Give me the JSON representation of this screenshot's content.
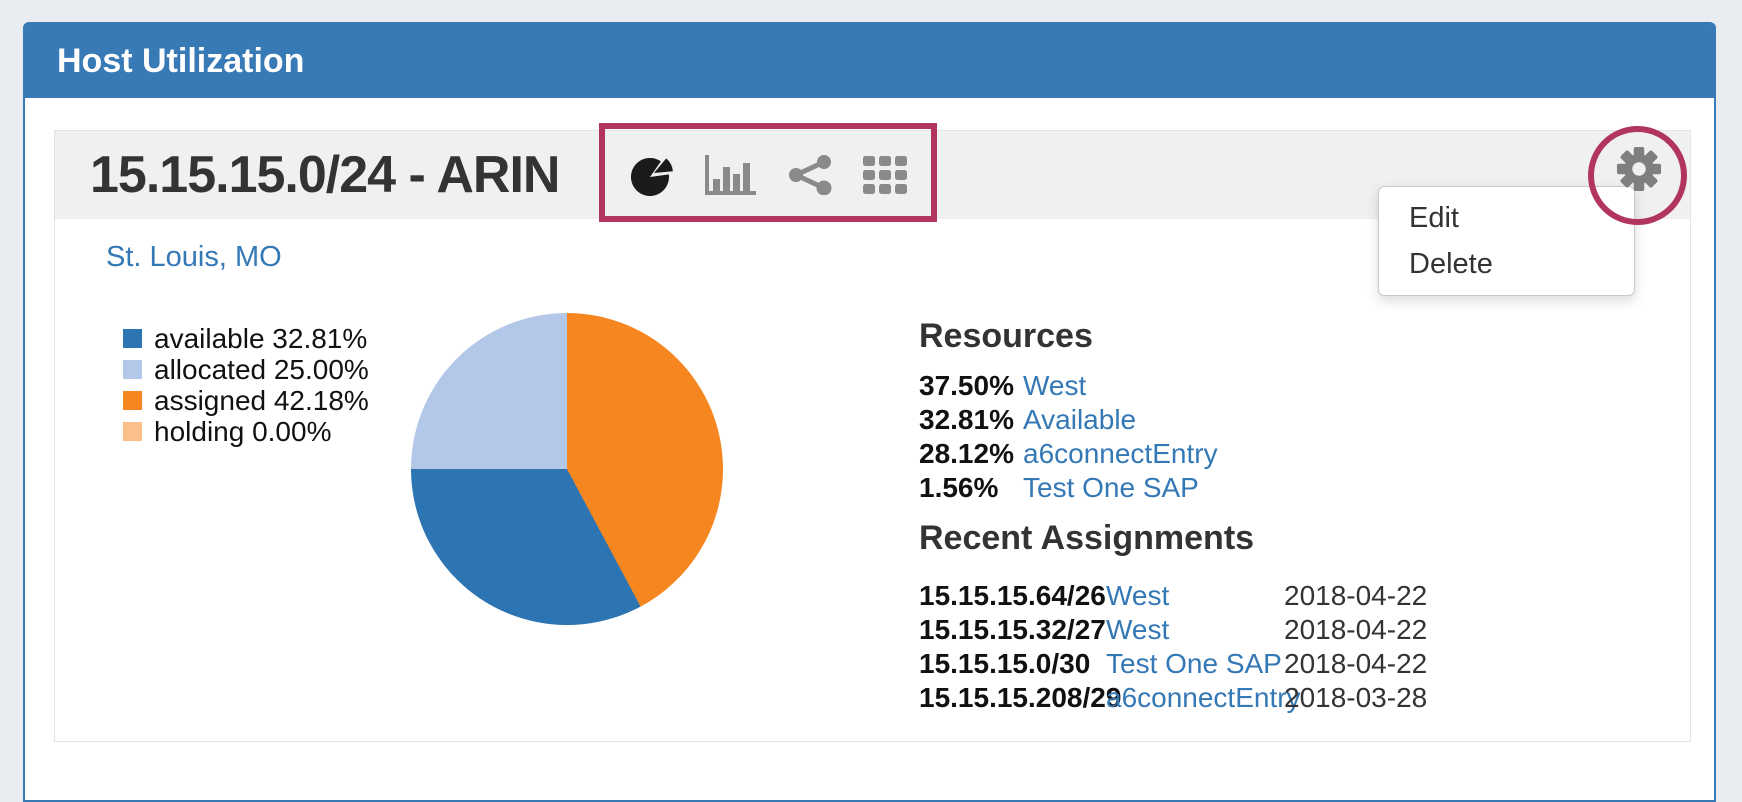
{
  "panel": {
    "title": "Host Utilization",
    "header_color": "#387ab6"
  },
  "widget": {
    "title": "15.15.15.0/24 - ARIN",
    "location_link": "St. Louis, MO",
    "toolbar_icons": [
      "pie-chart",
      "bar-chart",
      "share",
      "grid"
    ],
    "gear_menu": {
      "items": [
        {
          "label": "Edit"
        },
        {
          "label": "Delete"
        }
      ]
    }
  },
  "chart_data": {
    "type": "pie",
    "slices": [
      {
        "label": "available",
        "percent": 32.81,
        "percent_label": "32.81%",
        "color": "#2d74b3"
      },
      {
        "label": "allocated",
        "percent": 25.0,
        "percent_label": "25.00%",
        "color": "#b3c7e8"
      },
      {
        "label": "assigned",
        "percent": 42.18,
        "percent_label": "42.18%",
        "color": "#f6861f"
      },
      {
        "label": "holding",
        "percent": 0.0,
        "percent_label": "0.00%",
        "color": "#fbc08a"
      }
    ],
    "draw_order_clockwise_from_top": [
      "assigned",
      "available",
      "allocated",
      "holding"
    ],
    "legend_position": "left"
  },
  "resources": {
    "heading": "Resources",
    "items": [
      {
        "percent": "37.50%",
        "name": "West"
      },
      {
        "percent": "32.81%",
        "name": "Available"
      },
      {
        "percent": "28.12%",
        "name": "a6connectEntry"
      },
      {
        "percent": "1.56%",
        "name": "Test One SAP"
      }
    ]
  },
  "recent_assignments": {
    "heading": "Recent Assignments",
    "items": [
      {
        "block": "15.15.15.64/26",
        "name": "West",
        "date": "2018-04-22"
      },
      {
        "block": "15.15.15.32/27",
        "name": "West",
        "date": "2018-04-22"
      },
      {
        "block": "15.15.15.0/30",
        "name": "Test One SAP",
        "date": "2018-04-22"
      },
      {
        "block": "15.15.15.208/29",
        "name": "a6connectEntry",
        "date": "2018-03-28"
      }
    ]
  },
  "annotations": {
    "color": "#b23560",
    "shapes": [
      "toolbar-highlight-box",
      "gear-highlight-circle"
    ]
  }
}
